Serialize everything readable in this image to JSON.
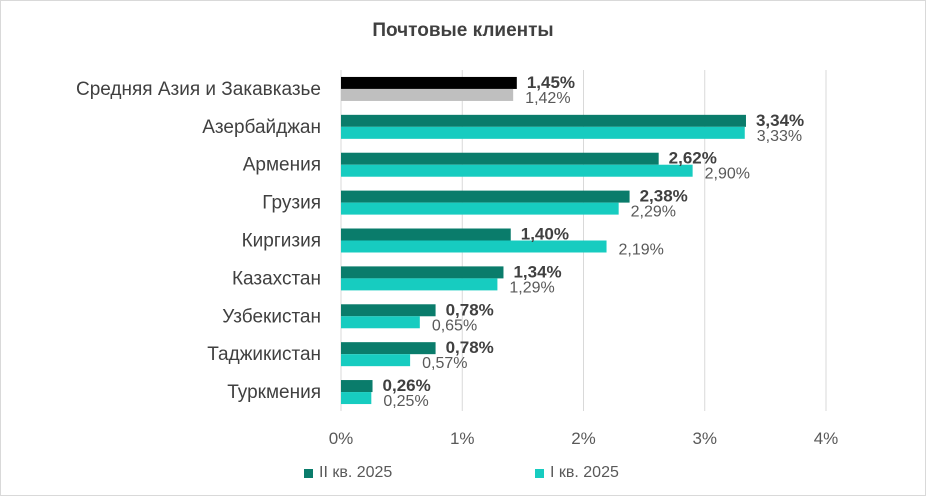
{
  "chart_data": {
    "type": "bar",
    "orientation": "horizontal",
    "title": "Почтовые клиенты",
    "categories": [
      "Средняя Азия и Закавказье",
      "Азербайджан",
      "Армения",
      "Грузия",
      "Киргизия",
      "Казахстан",
      "Узбекистан",
      "Таджикистан",
      "Туркмения"
    ],
    "series": [
      {
        "name": "II кв. 2025",
        "values": [
          1.45,
          3.34,
          2.62,
          2.38,
          1.4,
          1.34,
          0.78,
          0.78,
          0.26
        ],
        "labels": [
          "1,45%",
          "3,34%",
          "2,62%",
          "2,38%",
          "1,40%",
          "1,34%",
          "0,78%",
          "0,78%",
          "0,26%"
        ],
        "color": "#0a7c6b",
        "summary_color": "#000000"
      },
      {
        "name": "I кв. 2025",
        "values": [
          1.42,
          3.33,
          2.9,
          2.29,
          2.19,
          1.29,
          0.65,
          0.57,
          0.25
        ],
        "labels": [
          "1,42%",
          "3,33%",
          "2,90%",
          "2,29%",
          "2,19%",
          "1,29%",
          "0,65%",
          "0,57%",
          "0,25%"
        ],
        "color": "#17ccc0",
        "summary_color": "#bfbfbf"
      }
    ],
    "xlim": [
      0,
      4
    ],
    "xticks": [
      0,
      1,
      2,
      3,
      4
    ],
    "xtick_labels": [
      "0%",
      "1%",
      "2%",
      "3%",
      "4%"
    ],
    "grid": true,
    "legend_position": "bottom"
  }
}
